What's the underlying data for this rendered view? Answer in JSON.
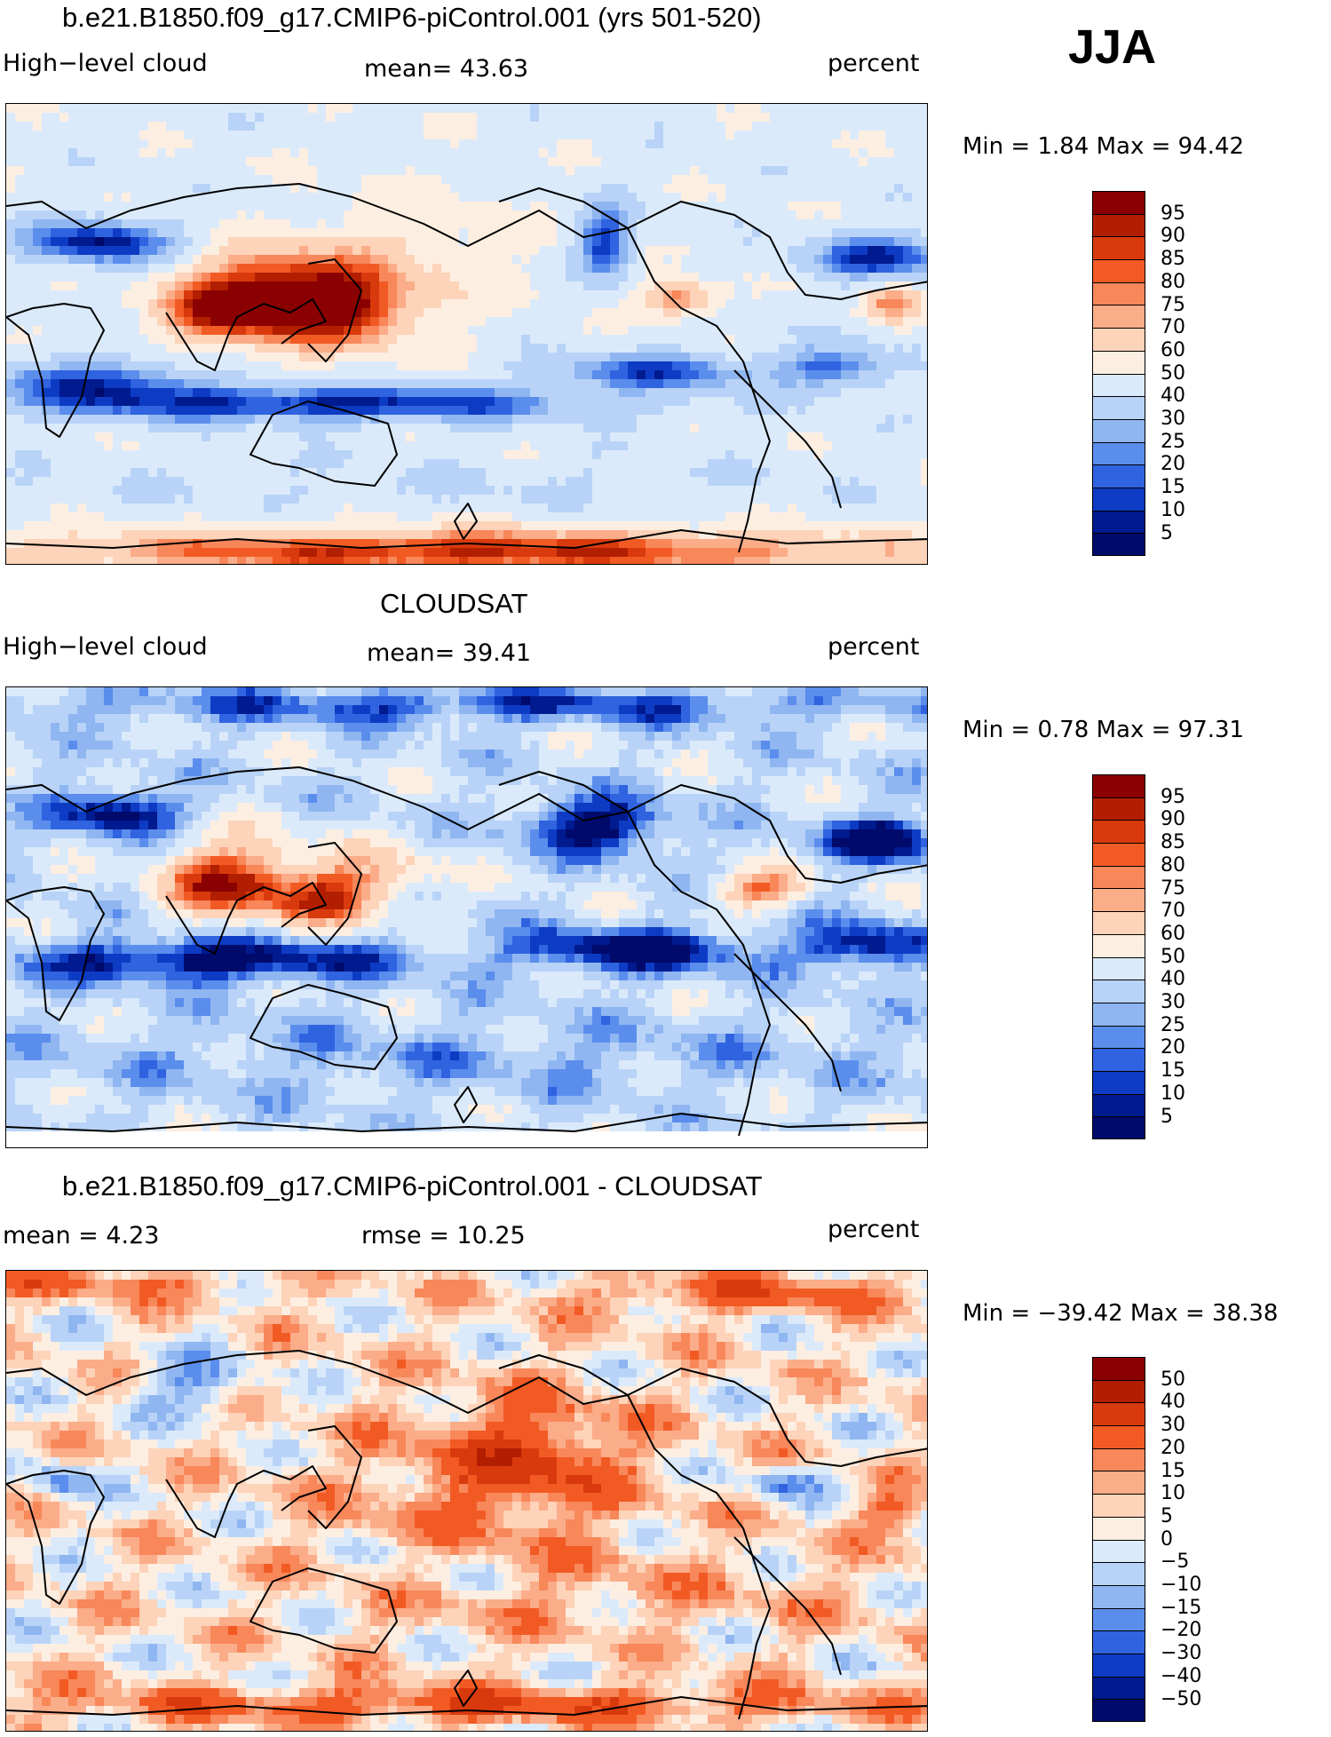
{
  "season": "JJA",
  "panels": [
    {
      "id": "model",
      "title": "b.e21.B1850.f09_g17.CMIP6-piControl.001 (yrs 501-520)",
      "left_label": "High−level cloud",
      "center_label": "mean=   43.63",
      "units": "percent",
      "stats": "Min  =    1.84  Max  =   94.42",
      "colorbar": {
        "labels": [
          "95",
          "90",
          "85",
          "80",
          "75",
          "70",
          "60",
          "50",
          "40",
          "30",
          "25",
          "20",
          "15",
          "10",
          "5"
        ],
        "colors": [
          "#8b0000",
          "#b21e00",
          "#d93a0d",
          "#f25a24",
          "#f8875a",
          "#fbac88",
          "#fdd3b9",
          "#fdeee2",
          "#dbeafb",
          "#b8d3f7",
          "#8fb6f1",
          "#5b8ded",
          "#2f63e0",
          "#0d3bc4",
          "#001a8f",
          "#000a6b"
        ]
      },
      "map": {
        "pattern": "model",
        "seed": 11,
        "bottom_blank": false
      }
    },
    {
      "id": "obs",
      "title": "CLOUDSAT",
      "left_label": "High−level cloud",
      "center_label": "mean=   39.41",
      "units": "percent",
      "stats": "Min  =    0.78  Max  =   97.31",
      "colorbar": {
        "labels": [
          "95",
          "90",
          "85",
          "80",
          "75",
          "70",
          "60",
          "50",
          "40",
          "30",
          "25",
          "20",
          "15",
          "10",
          "5"
        ],
        "colors": [
          "#8b0000",
          "#b21e00",
          "#d93a0d",
          "#f25a24",
          "#f8875a",
          "#fbac88",
          "#fdd3b9",
          "#fdeee2",
          "#dbeafb",
          "#b8d3f7",
          "#8fb6f1",
          "#5b8ded",
          "#2f63e0",
          "#0d3bc4",
          "#001a8f",
          "#000a6b"
        ]
      },
      "map": {
        "pattern": "obs",
        "seed": 23,
        "bottom_blank": true
      }
    },
    {
      "id": "diff",
      "title": "b.e21.B1850.f09_g17.CMIP6-piControl.001 - CLOUDSAT",
      "left_label": "mean  =     4.23",
      "center_label": "rmse  =     10.25",
      "units": "percent",
      "stats": "Min  = −39.42  Max  =    38.38",
      "colorbar": {
        "labels": [
          "50",
          "40",
          "30",
          "20",
          "15",
          "10",
          "5",
          "0",
          "−5",
          "−10",
          "−15",
          "−20",
          "−30",
          "−40",
          "−50"
        ],
        "colors": [
          "#8b0000",
          "#b21e00",
          "#d93a0d",
          "#f25a24",
          "#f8875a",
          "#fbac88",
          "#fdd3b9",
          "#fdeee2",
          "#dbeafb",
          "#b8d3f7",
          "#8fb6f1",
          "#5b8ded",
          "#2f63e0",
          "#0d3bc4",
          "#001a8f",
          "#000a6b"
        ]
      },
      "map": {
        "pattern": "diff",
        "seed": 37,
        "bottom_blank": false
      }
    }
  ]
}
